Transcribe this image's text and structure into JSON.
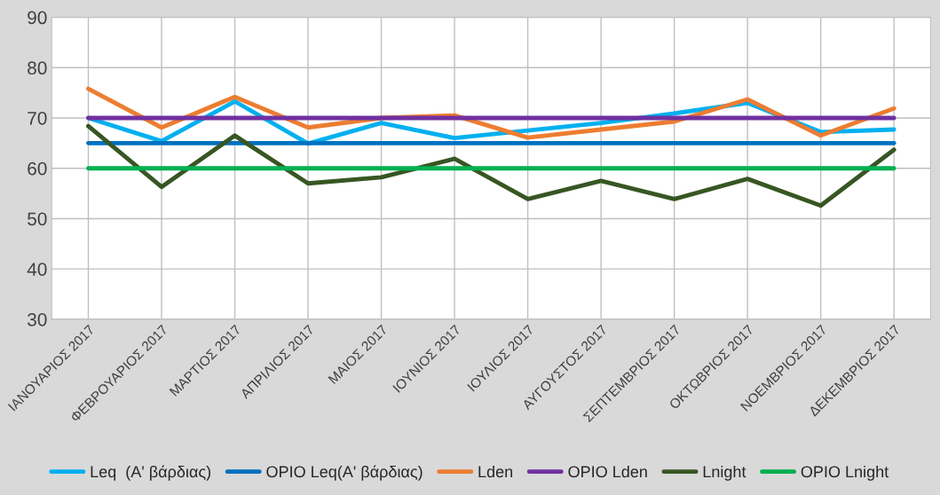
{
  "chart_data": {
    "type": "line",
    "categories": [
      "ΙΑΝΟΥΑΡΙΟΣ 2017",
      "ΦΕΒΡΟΥΑΡΙΟΣ 2017",
      "ΜΑΡΤΙΟΣ 2017",
      "ΑΠΡΙΛΙΟΣ 2017",
      "ΜΑΙΟΣ 2017",
      "ΙΟΥΝΙΟΣ 2017",
      "ΙΟΥΛΙΟΣ 2017",
      "ΑΥΓΟΥΣΤΟΣ 2017",
      "ΣΕΠΤΕΜΒΡΙΟΣ 2017",
      "ΟΚΤΩΒΡΙΟΣ 2017",
      "ΝΟΕΜΒΡΙΟΣ 2017",
      "ΔΕΚΕΜΒΡΙΟΣ 2017"
    ],
    "series": [
      {
        "name": "Leq  (Α' βάρδιας)",
        "color": "#00b0f0",
        "values": [
          70,
          65.4,
          73.3,
          64.9,
          69,
          66,
          67.5,
          69,
          70.9,
          73,
          67.2,
          67.7
        ]
      },
      {
        "name": "ΟΡΙΟ Leq(Α' βάρδιας)",
        "color": "#0070c0",
        "values": [
          65,
          65,
          65,
          65,
          65,
          65,
          65,
          65,
          65,
          65,
          65,
          65
        ]
      },
      {
        "name": "Lden",
        "color": "#ed7d31",
        "values": [
          75.8,
          68.1,
          74.2,
          68.1,
          70,
          70.5,
          66.1,
          67.7,
          69.3,
          73.7,
          66.5,
          71.9
        ]
      },
      {
        "name": "ΟΡΙΟ Lden",
        "color": "#7030a0",
        "values": [
          70,
          70,
          70,
          70,
          70,
          70,
          70,
          70,
          70,
          70,
          70,
          70
        ]
      },
      {
        "name": "Lnight",
        "color": "#375623",
        "values": [
          68.4,
          56.3,
          66.5,
          57,
          58.2,
          61.9,
          53.9,
          57.5,
          53.9,
          57.9,
          52.6,
          63.7
        ]
      },
      {
        "name": "ΟΡΙΟ Lnight",
        "color": "#00b050",
        "values": [
          60,
          60,
          60,
          60,
          60,
          60,
          60,
          60,
          60,
          60,
          60,
          60
        ]
      }
    ],
    "ylim": [
      30,
      90
    ],
    "yticks": [
      30,
      40,
      50,
      60,
      70,
      80,
      90
    ],
    "grid": true,
    "legend": "bottom",
    "marker": "none",
    "line_style": "solid"
  }
}
